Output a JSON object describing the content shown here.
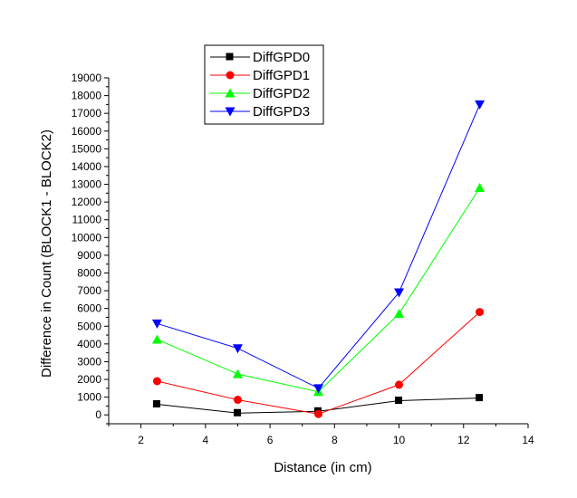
{
  "chart_data": {
    "type": "line",
    "title": "",
    "xlabel": "Distance (in cm)",
    "ylabel": "Difference in Count (BLOCK1 - BLOCK2)",
    "xlim": [
      1,
      14
    ],
    "ylim": [
      -500,
      19000
    ],
    "x_ticks": [
      2,
      4,
      6,
      8,
      10,
      12,
      14
    ],
    "y_ticks": [
      0,
      1000,
      2000,
      3000,
      4000,
      5000,
      6000,
      7000,
      8000,
      9000,
      10000,
      11000,
      12000,
      13000,
      14000,
      15000,
      16000,
      17000,
      18000,
      19000
    ],
    "x": [
      2.5,
      5,
      7.5,
      10,
      12.5
    ],
    "legend_position": "top-left",
    "series": [
      {
        "name": "DiffGPD0",
        "color": "#000000",
        "marker": "square",
        "values": [
          600,
          100,
          200,
          800,
          950
        ]
      },
      {
        "name": "DiffGPD1",
        "color": "#ff0000",
        "marker": "circle",
        "values": [
          1900,
          850,
          50,
          1700,
          5800
        ]
      },
      {
        "name": "DiffGPD2",
        "color": "#00ff00",
        "marker": "triangle-up",
        "values": [
          4250,
          2300,
          1300,
          5700,
          12800
        ]
      },
      {
        "name": "DiffGPD3",
        "color": "#0000ff",
        "marker": "triangle-down",
        "values": [
          5150,
          3750,
          1500,
          6900,
          17500
        ]
      }
    ]
  }
}
